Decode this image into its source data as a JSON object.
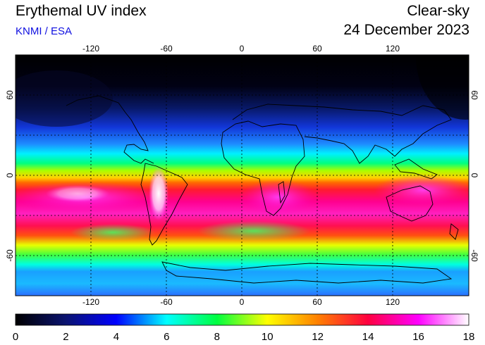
{
  "header": {
    "title": "Erythemal UV index",
    "credit": "KNMI / ESA",
    "condition": "Clear-sky",
    "date": "24 December 2023"
  },
  "map": {
    "lon_ticks": [
      "-120",
      "-60",
      "0",
      "60",
      "120"
    ],
    "lat_ticks": [
      "60",
      "0",
      "-60"
    ]
  },
  "colorbar": {
    "range": [
      0,
      18
    ],
    "ticks": [
      "0",
      "2",
      "4",
      "6",
      "8",
      "10",
      "12",
      "14",
      "16",
      "18"
    ],
    "colors": [
      "#000000",
      "#0a1370",
      "#0000ff",
      "#00ffff",
      "#00ff40",
      "#ffff00",
      "#ff8000",
      "#ff0040",
      "#ff00ff",
      "#ffffff"
    ]
  }
}
